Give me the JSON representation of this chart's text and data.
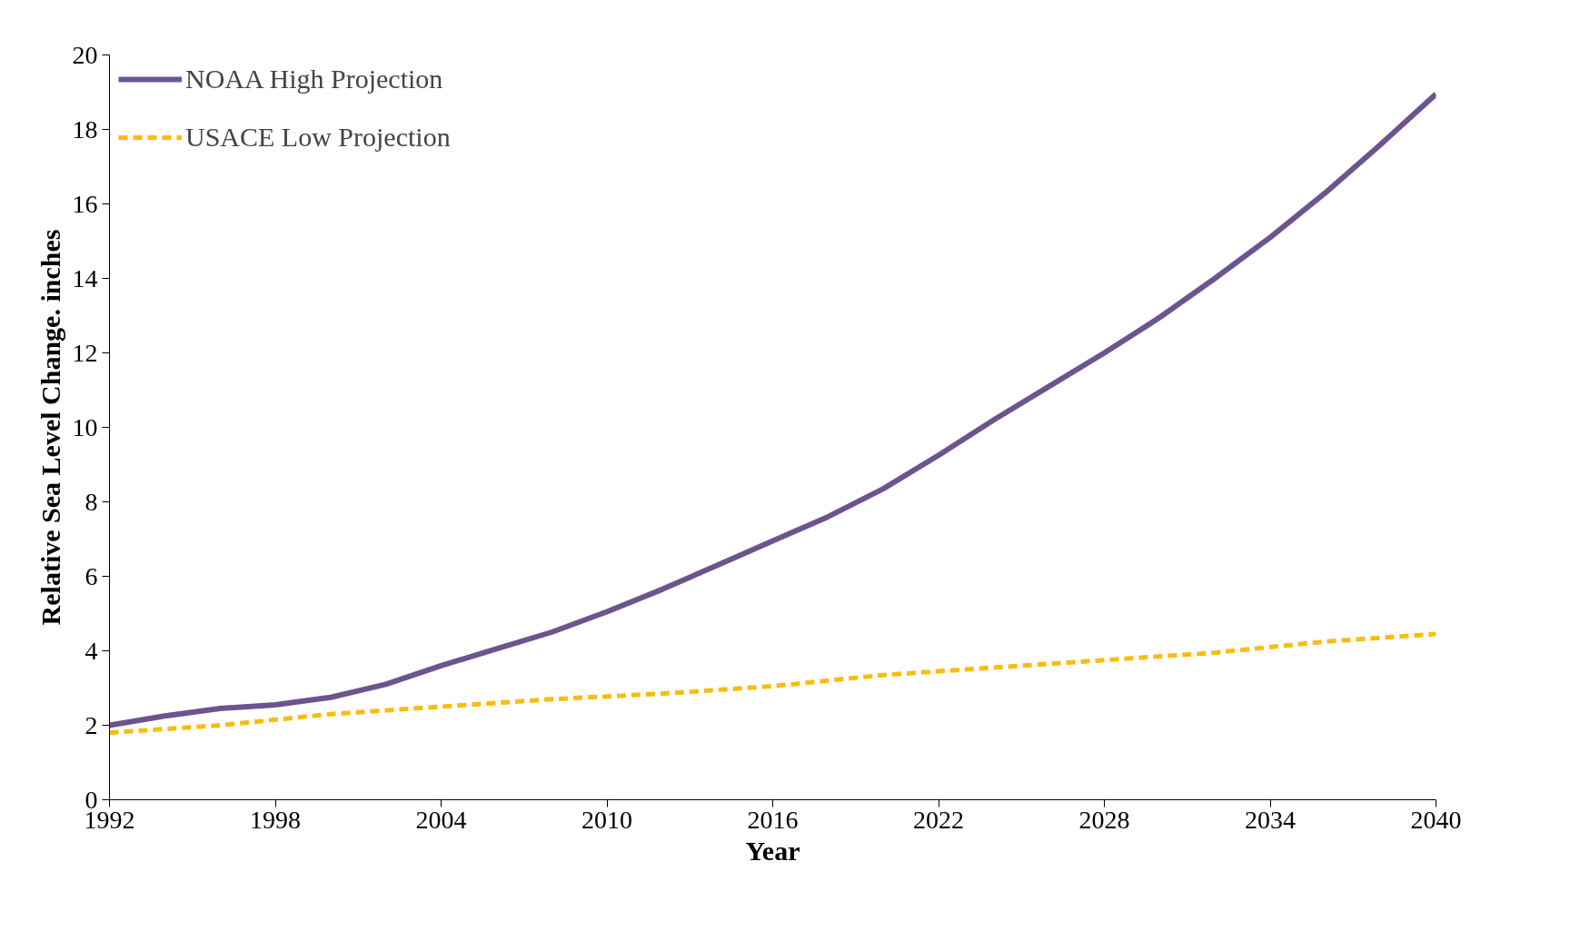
{
  "chart_data": {
    "type": "line",
    "xlabel": "Year",
    "ylabel": "Relative Sea Level Change. inches",
    "xlim": [
      1992,
      2040
    ],
    "xticks": [
      1992,
      1998,
      2004,
      2010,
      2016,
      2022,
      2028,
      2034,
      2040
    ],
    "ylim": [
      0,
      20
    ],
    "yticks": [
      0,
      2,
      4,
      6,
      8,
      10,
      12,
      14,
      16,
      18,
      20
    ],
    "grid": false,
    "legend": "top left",
    "marker": "none",
    "series": [
      {
        "name": "NOAA High Projection",
        "color": "#6c548e",
        "line_style": "solid",
        "x": [
          1992,
          1994,
          1996,
          1998,
          2000,
          2002,
          2004,
          2006,
          2008,
          2010,
          2012,
          2014,
          2016,
          2018,
          2020,
          2022,
          2024,
          2026,
          2028,
          2030,
          2032,
          2034,
          2036,
          2038,
          2040
        ],
        "values": [
          2.0,
          2.25,
          2.45,
          2.55,
          2.75,
          3.1,
          3.6,
          4.05,
          4.5,
          5.05,
          5.65,
          6.3,
          6.95,
          7.6,
          8.35,
          9.25,
          10.2,
          11.1,
          12.0,
          12.95,
          14.0,
          15.1,
          16.3,
          17.6,
          18.95
        ]
      },
      {
        "name": "USACE Low Projection",
        "color": "#fbbc0f",
        "line_style": "dashed",
        "x": [
          1992,
          1996,
          2000,
          2004,
          2008,
          2012,
          2016,
          2020,
          2024,
          2028,
          2032,
          2036,
          2040
        ],
        "values": [
          1.8,
          2.0,
          2.3,
          2.5,
          2.7,
          2.85,
          3.05,
          3.35,
          3.55,
          3.75,
          3.95,
          4.25,
          4.45
        ]
      }
    ]
  }
}
